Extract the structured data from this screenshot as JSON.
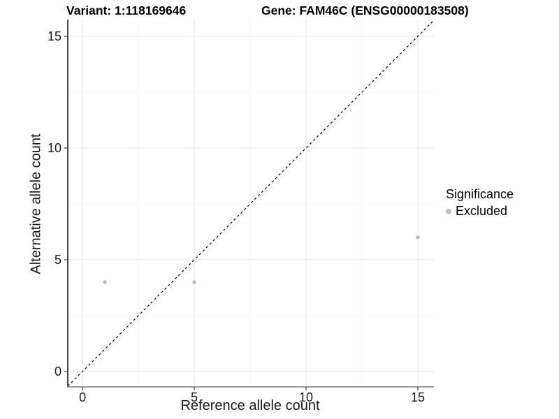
{
  "chart_data": {
    "type": "scatter",
    "title_left": "Variant: 1:118169646",
    "title_right": "Gene: FAM46C (ENSG00000183508)",
    "xlabel": "Reference allele count",
    "ylabel": "Alternative allele count",
    "xlim": [
      -0.66,
      15.72
    ],
    "ylim": [
      -0.69,
      15.75
    ],
    "xticks": [
      0,
      5,
      10,
      15
    ],
    "yticks": [
      0,
      5,
      10,
      15
    ],
    "x_minor_ticks": [
      2.5,
      7.5,
      12.5
    ],
    "y_minor_ticks": [
      2.5,
      7.5,
      12.5
    ],
    "grid": "major+minor",
    "reference_line": {
      "type": "identity y=x",
      "style": "dashed",
      "color": "#000000"
    },
    "series": [
      {
        "name": "Excluded",
        "marker": "circle",
        "color": "#bebebe",
        "points": [
          [
            1,
            4
          ],
          [
            5,
            4
          ],
          [
            15,
            6
          ]
        ]
      }
    ],
    "legend": {
      "position": "right",
      "title": "Significance",
      "entries": [
        {
          "label": "Excluded",
          "color": "#bebebe"
        }
      ]
    },
    "colors": {
      "background": "#ffffff",
      "grid_major": "#e8e8e8",
      "grid_minor": "#f4f4f4",
      "axis_line_y": "#1f1f1f",
      "axis_line_x": "#7d7d7d",
      "tick_mark": "#333333",
      "tick_text": "#1a1a1a"
    }
  }
}
